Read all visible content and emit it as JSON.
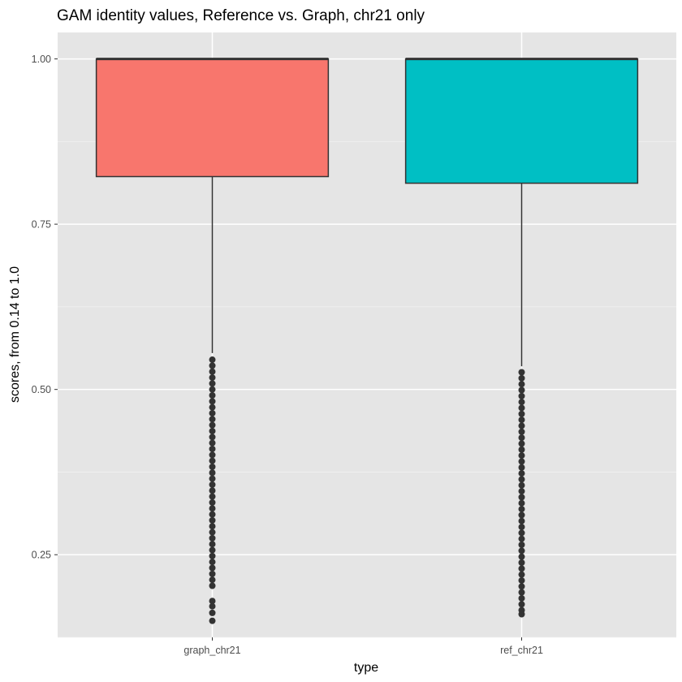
{
  "chart_data": {
    "type": "boxplot",
    "title": "GAM identity values, Reference vs. Graph, chr21 only",
    "xlabel": "type",
    "ylabel": "scores, from 0.14 to 1.0",
    "ylim": [
      0.125,
      1.04
    ],
    "yticks": [
      0.25,
      0.5,
      0.75,
      1.0
    ],
    "ytick_labels": [
      "0.25",
      "0.50",
      "0.75",
      "1.00"
    ],
    "grid": true,
    "legend": "none",
    "categories": [
      "graph_chr21",
      "ref_chr21"
    ],
    "boxes": [
      {
        "category": "graph_chr21",
        "color": "#F8766D",
        "q1": 0.822,
        "median": 1.0,
        "q3": 1.0,
        "whisker_low": 0.555,
        "whisker_high": 1.0,
        "outliers_range": [
          0.15,
          0.545
        ],
        "outliers": [
          0.545,
          0.536,
          0.527,
          0.518,
          0.509,
          0.5,
          0.491,
          0.482,
          0.473,
          0.464,
          0.455,
          0.446,
          0.437,
          0.428,
          0.419,
          0.41,
          0.401,
          0.392,
          0.383,
          0.374,
          0.365,
          0.356,
          0.347,
          0.338,
          0.329,
          0.32,
          0.311,
          0.302,
          0.293,
          0.284,
          0.275,
          0.266,
          0.257,
          0.248,
          0.239,
          0.23,
          0.221,
          0.212,
          0.203,
          0.18,
          0.172,
          0.162,
          0.15
        ]
      },
      {
        "category": "ref_chr21",
        "color": "#00BFC4",
        "q1": 0.812,
        "median": 1.0,
        "q3": 1.0,
        "whisker_low": 0.535,
        "whisker_high": 1.0,
        "outliers_range": [
          0.16,
          0.526
        ],
        "outliers": [
          0.526,
          0.517,
          0.508,
          0.499,
          0.49,
          0.481,
          0.472,
          0.463,
          0.454,
          0.445,
          0.436,
          0.427,
          0.418,
          0.409,
          0.4,
          0.391,
          0.382,
          0.373,
          0.364,
          0.355,
          0.346,
          0.337,
          0.328,
          0.319,
          0.31,
          0.301,
          0.292,
          0.283,
          0.274,
          0.265,
          0.256,
          0.247,
          0.238,
          0.229,
          0.22,
          0.211,
          0.202,
          0.193,
          0.184,
          0.175,
          0.166,
          0.16
        ]
      }
    ]
  }
}
